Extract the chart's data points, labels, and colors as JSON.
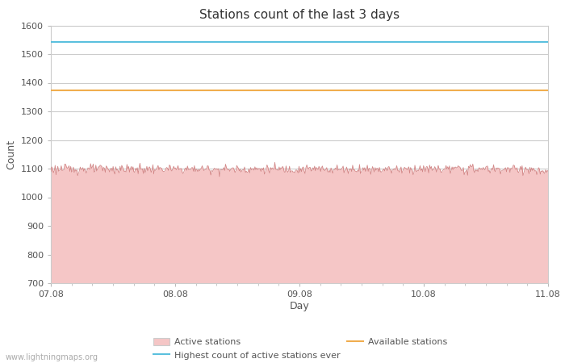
{
  "title": "Stations count of the last 3 days",
  "xlabel": "Day",
  "ylabel": "Count",
  "ylim": [
    700,
    1600
  ],
  "yticks": [
    700,
    800,
    900,
    1000,
    1100,
    1200,
    1300,
    1400,
    1500,
    1600
  ],
  "x_start_day": 7,
  "x_end_day": 11,
  "xtick_days": [
    7,
    8,
    9,
    10,
    11
  ],
  "xtick_labels": [
    "07.08",
    "08.08",
    "09.08",
    "10.08",
    "11.08"
  ],
  "active_stations_value": 1098,
  "active_stations_noise": 8,
  "highest_ever_value": 1543,
  "available_stations_value": 1373,
  "active_fill_color": "#f5c6c6",
  "active_line_color": "#c87070",
  "highest_line_color": "#5bc0de",
  "available_line_color": "#f0ad4e",
  "grid_color": "#cccccc",
  "background_color": "#ffffff",
  "watermark": "www.lightningmaps.org",
  "legend_active_label": "Active stations",
  "legend_highest_label": "Highest count of active stations ever",
  "legend_available_label": "Available stations"
}
